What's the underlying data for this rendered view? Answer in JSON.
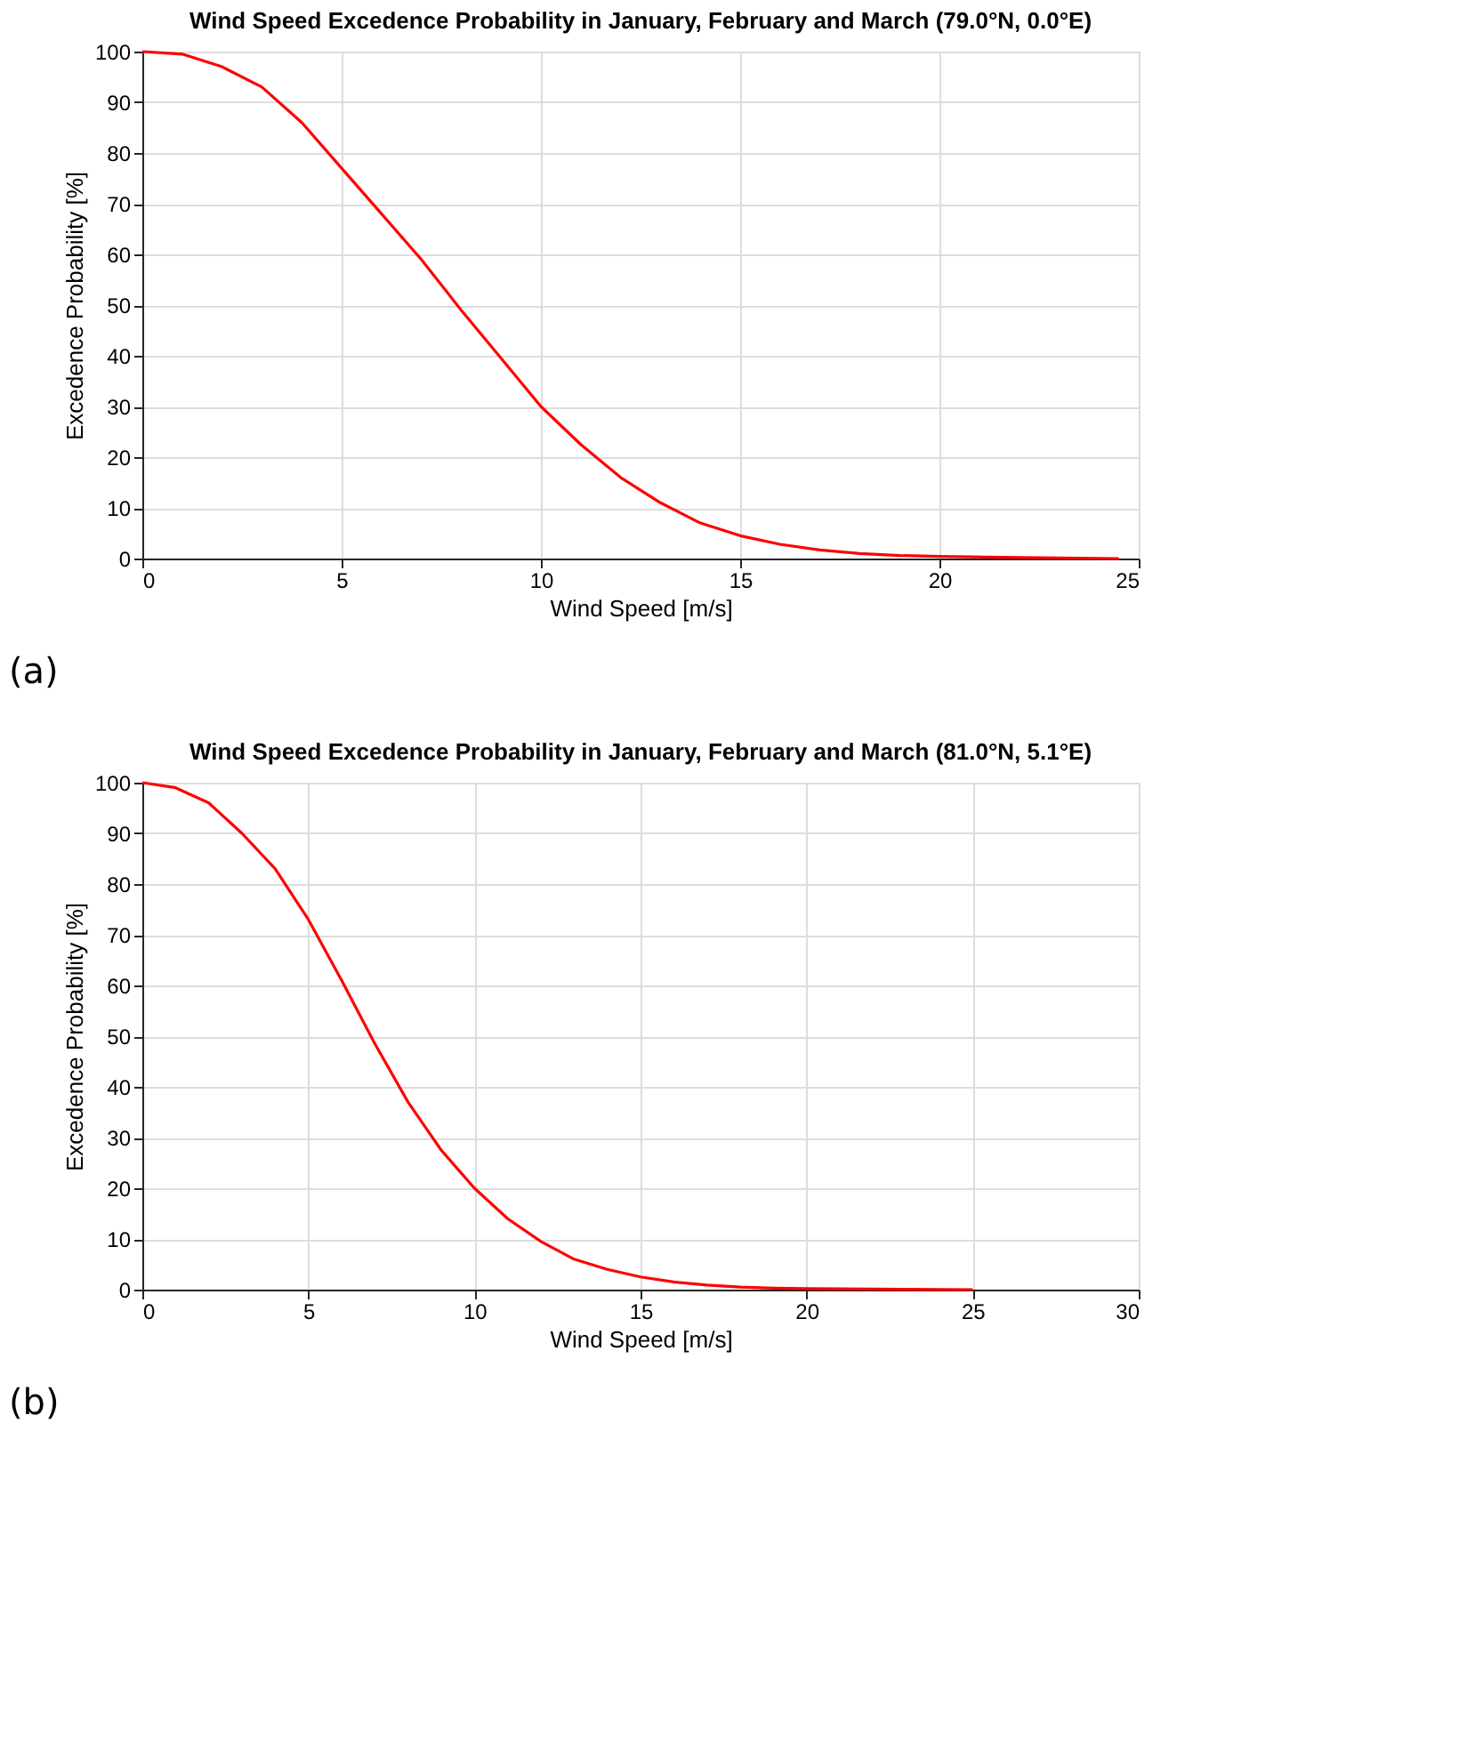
{
  "chart_data": [
    {
      "type": "line",
      "title": "Wind Speed Excedence Probability in January, February and March (79.0°N, 0.0°E)",
      "xlabel": "Wind Speed [m/s]",
      "ylabel": "Excedence Probability [%]",
      "annotations": [
        "(a)"
      ],
      "series": [
        {
          "color": "#ff0000",
          "x": [
            0,
            1,
            2,
            3,
            4,
            5,
            6,
            7,
            8,
            9,
            10,
            11,
            12,
            13,
            14,
            15,
            16,
            17,
            18,
            19,
            20,
            22,
            24.5
          ],
          "values": [
            100,
            99.5,
            97,
            93,
            86,
            77,
            68,
            59,
            49,
            39.5,
            30,
            22.5,
            16,
            11,
            7,
            4.5,
            2.8,
            1.7,
            1,
            0.6,
            0.4,
            0.2,
            0
          ]
        }
      ],
      "xlim": [
        0,
        25
      ],
      "xticks": [
        0,
        5,
        10,
        15,
        20,
        25
      ],
      "ylim": [
        0,
        100
      ],
      "yticks": [
        0,
        10,
        20,
        30,
        40,
        50,
        60,
        70,
        80,
        90,
        100
      ],
      "grid": true,
      "line_style": "solid"
    },
    {
      "type": "line",
      "title": "Wind Speed Excedence Probability in January, February and March (81.0°N, 5.1°E)",
      "xlabel": "Wind Speed [m/s]",
      "ylabel": "Excedence Probability [%]",
      "annotations": [
        "(b)"
      ],
      "series": [
        {
          "color": "#ff0000",
          "x": [
            0,
            1,
            2,
            3,
            4,
            5,
            6,
            7,
            8,
            9,
            10,
            11,
            12,
            13,
            14,
            15,
            16,
            17,
            18,
            19,
            20,
            22,
            25
          ],
          "values": [
            100,
            99,
            96,
            90,
            83,
            73,
            61,
            48.5,
            37,
            27.5,
            20,
            14,
            9.5,
            6,
            4,
            2.5,
            1.5,
            0.9,
            0.5,
            0.3,
            0.2,
            0.1,
            0
          ]
        }
      ],
      "xlim": [
        0,
        30
      ],
      "xticks": [
        0,
        5,
        10,
        15,
        20,
        25,
        30
      ],
      "ylim": [
        0,
        100
      ],
      "yticks": [
        0,
        10,
        20,
        30,
        40,
        50,
        60,
        70,
        80,
        90,
        100
      ],
      "grid": true,
      "line_style": "solid"
    }
  ]
}
